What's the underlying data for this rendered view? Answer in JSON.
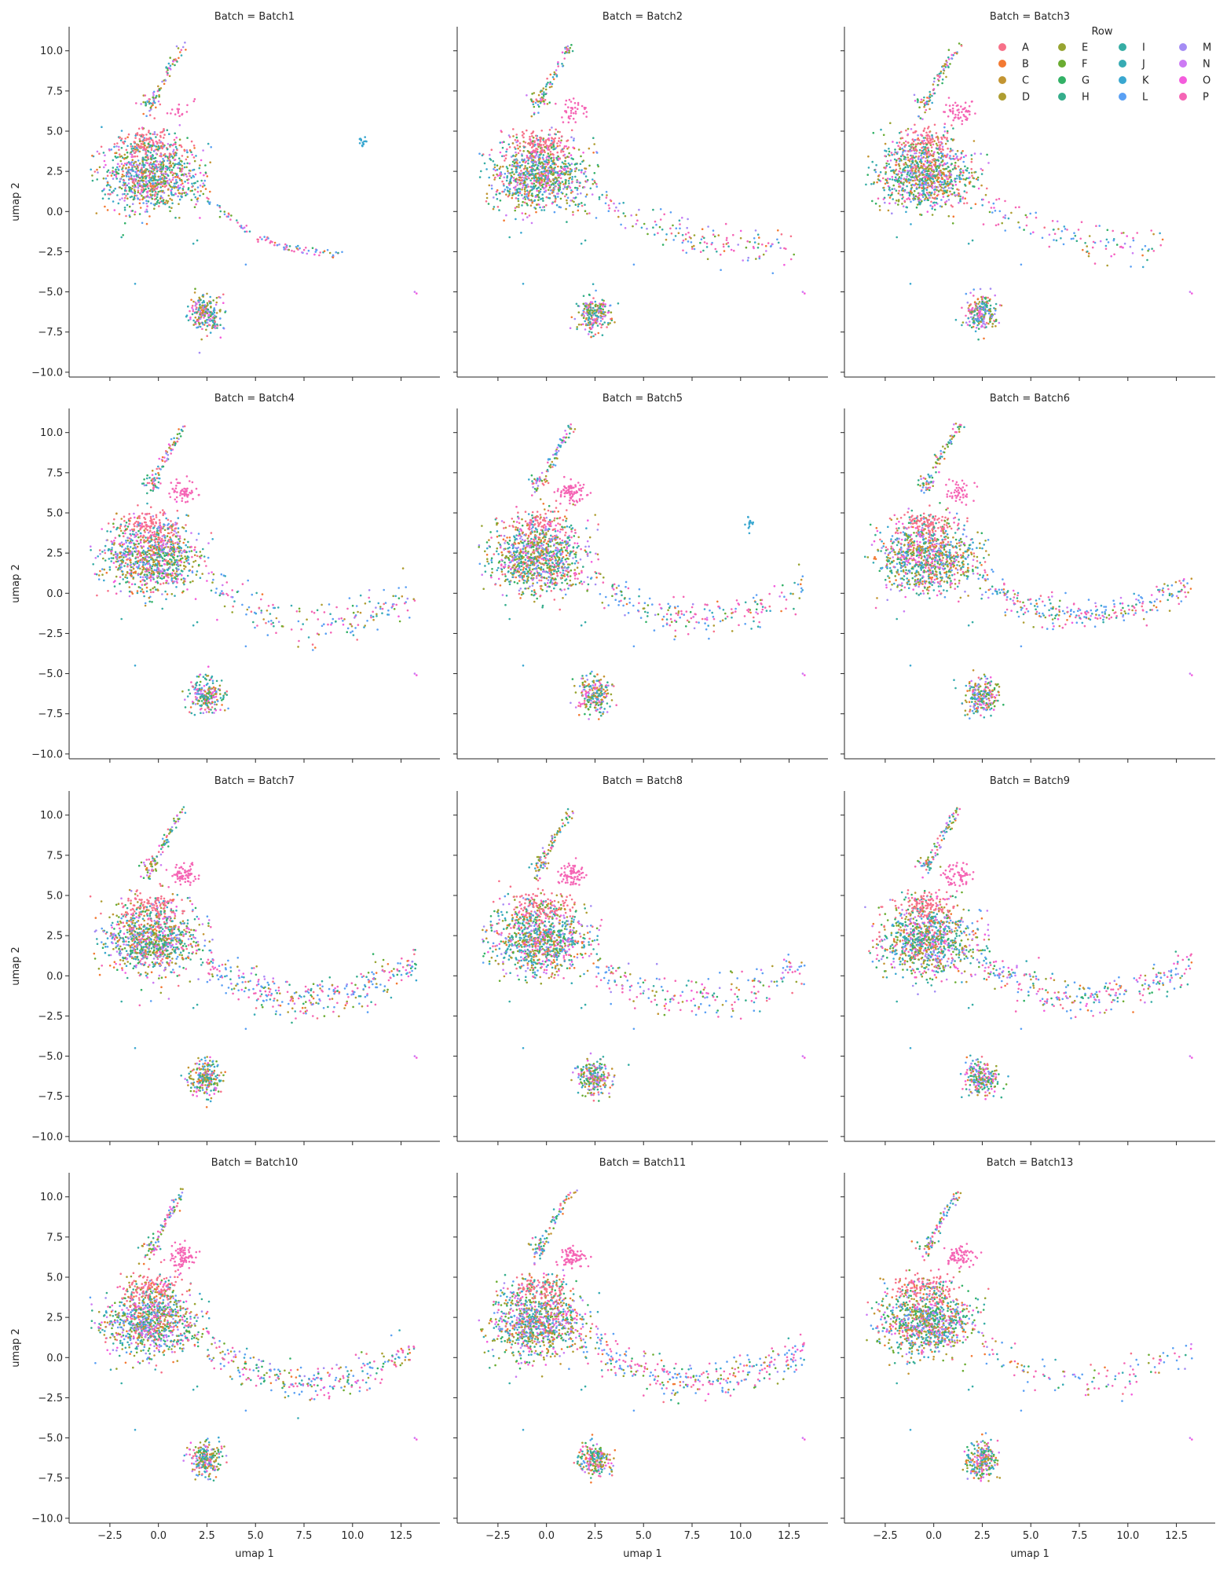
{
  "chart_data": {
    "type": "scatter",
    "facet_label": "Batch",
    "xlabel": "umap 1",
    "ylabel": "umap 2",
    "xlim": [
      -4.6,
      14.5
    ],
    "ylim": [
      -10.3,
      11.5
    ],
    "x_ticks": [
      -2.5,
      0.0,
      2.5,
      5.0,
      7.5,
      10.0,
      12.5
    ],
    "x_tick_labels": [
      "−2.5",
      "0.0",
      "2.5",
      "5.0",
      "7.5",
      "10.0",
      "12.5"
    ],
    "y_ticks": [
      10.0,
      7.5,
      5.0,
      2.5,
      0.0,
      -2.5,
      -5.0,
      -7.5,
      -10.0
    ],
    "y_tick_labels": [
      "10.0",
      "7.5",
      "5.0",
      "2.5",
      "0.0",
      "−2.5",
      "−5.0",
      "−7.5",
      "−10.0"
    ],
    "grid": false,
    "legend_placement": "top-right",
    "legend": {
      "title": "Row",
      "entries": [
        {
          "label": "A",
          "color": "#f77189"
        },
        {
          "label": "B",
          "color": "#f37932"
        },
        {
          "label": "C",
          "color": "#c39532"
        },
        {
          "label": "D",
          "color": "#ae9d31"
        },
        {
          "label": "E",
          "color": "#97a431"
        },
        {
          "label": "F",
          "color": "#6aac31"
        },
        {
          "label": "G",
          "color": "#32b166"
        },
        {
          "label": "H",
          "color": "#35ad8b"
        },
        {
          "label": "I",
          "color": "#36ada4"
        },
        {
          "label": "J",
          "color": "#37abb4"
        },
        {
          "label": "K",
          "color": "#39a7d0"
        },
        {
          "label": "L",
          "color": "#5aa0f4"
        },
        {
          "label": "M",
          "color": "#a48cf4"
        },
        {
          "label": "N",
          "color": "#cc7af4"
        },
        {
          "label": "O",
          "color": "#f45cdd"
        },
        {
          "label": "P",
          "color": "#f565b5"
        }
      ]
    },
    "panels": [
      {
        "title": "Batch = Batch1",
        "tail_end": [
          9.5,
          -2.6
        ],
        "tail_width": 0.15,
        "tail_weight": 0.35,
        "pink_cluster": 0.2,
        "island": [
          10.5,
          4.3
        ]
      },
      {
        "title": "Batch = Batch2",
        "tail_end": [
          12.8,
          -2.1
        ],
        "tail_width": 0.55,
        "tail_weight": 0.6,
        "pink_cluster": 0.5,
        "island": null
      },
      {
        "title": "Batch = Batch3",
        "tail_end": [
          12.0,
          -2.2
        ],
        "tail_width": 0.6,
        "tail_weight": 0.45,
        "pink_cluster": 0.7,
        "island": null
      },
      {
        "title": "Batch = Batch4",
        "tail_end": [
          13.2,
          -0.3
        ],
        "tail_width": 0.65,
        "tail_weight": 0.7,
        "pink_cluster": 0.7,
        "island": null
      },
      {
        "title": "Batch = Batch5",
        "tail_end": [
          13.2,
          0.3
        ],
        "tail_width": 0.55,
        "tail_weight": 0.8,
        "pink_cluster": 1.0,
        "island": [
          10.5,
          4.3
        ]
      },
      {
        "title": "Batch = Batch6",
        "tail_end": [
          13.3,
          0.6
        ],
        "tail_width": 0.45,
        "tail_weight": 1.1,
        "pink_cluster": 0.6,
        "island": null
      },
      {
        "title": "Batch = Batch7",
        "tail_end": [
          13.3,
          0.7
        ],
        "tail_width": 0.6,
        "tail_weight": 1.3,
        "pink_cluster": 0.9,
        "island": null
      },
      {
        "title": "Batch = Batch8",
        "tail_end": [
          13.3,
          0.7
        ],
        "tail_width": 0.65,
        "tail_weight": 0.8,
        "pink_cluster": 1.0,
        "island": null
      },
      {
        "title": "Batch = Batch9",
        "tail_end": [
          13.3,
          0.7
        ],
        "tail_width": 0.6,
        "tail_weight": 1.1,
        "pink_cluster": 0.8,
        "island": null
      },
      {
        "title": "Batch = Batch10",
        "tail_end": [
          13.3,
          0.4
        ],
        "tail_width": 0.6,
        "tail_weight": 1.1,
        "pink_cluster": 1.0,
        "island": null
      },
      {
        "title": "Batch = Batch11",
        "tail_end": [
          13.3,
          0.4
        ],
        "tail_width": 0.55,
        "tail_weight": 1.2,
        "pink_cluster": 1.0,
        "island": null
      },
      {
        "title": "Batch = Batch13",
        "tail_end": [
          13.3,
          0.5
        ],
        "tail_width": 0.55,
        "tail_weight": 0.45,
        "pink_cluster": 0.9,
        "island": null
      }
    ]
  }
}
